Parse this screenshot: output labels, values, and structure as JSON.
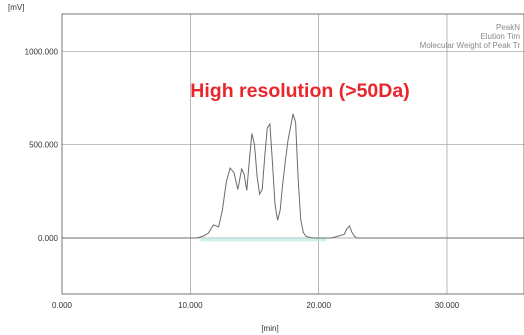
{
  "chart_data": {
    "type": "line",
    "title": "High resolution (>50Da)",
    "title_color": "#e8262c",
    "xlabel": "[min]",
    "ylabel": "[mV]",
    "xlim": [
      0,
      36
    ],
    "ylim": [
      -300,
      1200
    ],
    "x_ticks": [
      0,
      10,
      20,
      30
    ],
    "x_tick_labels": [
      "0.000",
      "10.000",
      "20.000",
      "30.000"
    ],
    "y_ticks": [
      0,
      500,
      1000
    ],
    "y_tick_labels": [
      "0.000",
      "500.000",
      "1000.000"
    ],
    "grid": true,
    "legend_lines": [
      "PeakN",
      "Elution Tim",
      "Molecular Weight of Peak Tr"
    ],
    "legend_placement": "top-right",
    "line_color": "#6b6b6b",
    "fill_color": "#c2ece6",
    "series": [
      {
        "x": [
          0,
          10.5,
          11.0,
          11.4,
          11.8,
          12.2,
          12.5,
          12.8,
          13.1,
          13.4,
          13.7,
          14.0,
          14.2,
          14.4,
          14.6,
          14.8,
          15.0,
          15.2,
          15.4,
          15.6,
          15.8,
          16.0,
          16.2,
          16.4,
          16.6,
          16.8,
          17.0,
          17.2,
          17.4,
          17.6,
          17.8,
          18.0,
          18.2,
          18.4,
          18.6,
          18.8,
          19.0,
          19.2,
          19.4,
          19.7,
          20.0,
          21.0,
          22.0,
          22.2,
          22.4,
          22.6,
          22.8,
          23.0,
          24.0,
          30.0,
          36.0
        ],
        "y": [
          0,
          0,
          10,
          25,
          70,
          60,
          150,
          300,
          375,
          350,
          260,
          370,
          340,
          255,
          420,
          560,
          500,
          330,
          235,
          260,
          440,
          590,
          610,
          400,
          180,
          95,
          150,
          290,
          410,
          520,
          590,
          665,
          620,
          320,
          100,
          30,
          10,
          5,
          2,
          0,
          0,
          0,
          20,
          50,
          65,
          30,
          8,
          0,
          0,
          0,
          0
        ]
      }
    ]
  }
}
